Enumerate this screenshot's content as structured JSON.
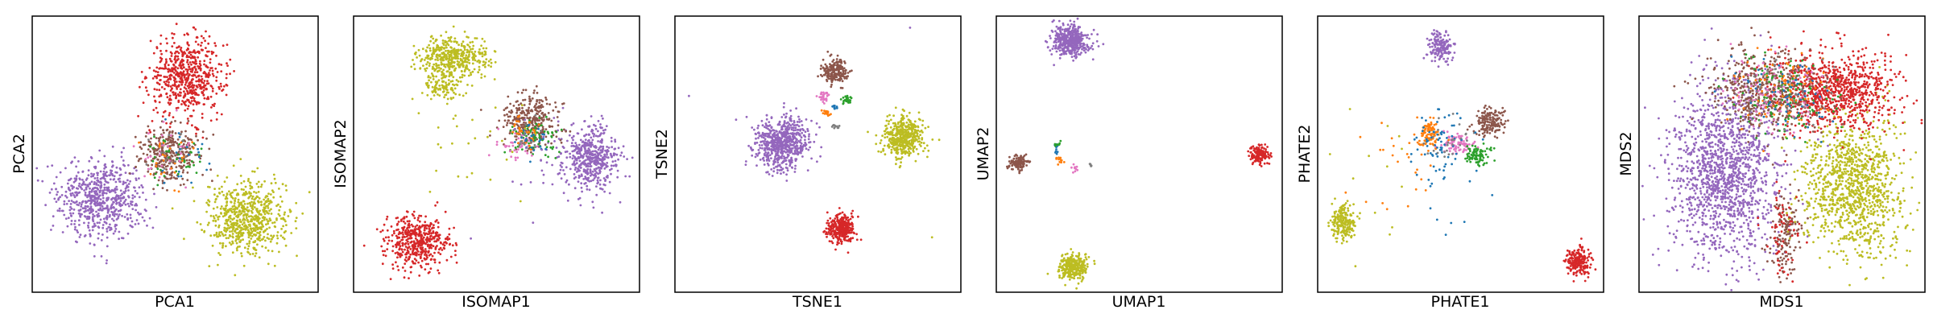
{
  "chart_data": [
    {
      "type": "scatter",
      "xlabel": "PCA1",
      "ylabel": "PCA2",
      "xlim": [
        0,
        100
      ],
      "ylim": [
        0,
        100
      ],
      "clusters": [
        {
          "color": "#d62728",
          "cx": 54,
          "cy": 78,
          "sx": 6.5,
          "sy": 7,
          "n": 600
        },
        {
          "color": "#9467bd",
          "cx": 24,
          "cy": 34,
          "sx": 7.5,
          "sy": 7,
          "n": 650
        },
        {
          "color": "#bcbd22",
          "cx": 75,
          "cy": 27,
          "sx": 7,
          "sy": 6.5,
          "n": 650
        },
        {
          "color": "#8c564b",
          "cx": 48,
          "cy": 50,
          "sx": 5,
          "sy": 5,
          "n": 320
        },
        {
          "color": "#2ca02c",
          "cx": 50,
          "cy": 48,
          "sx": 5,
          "sy": 5,
          "n": 40
        },
        {
          "color": "#e377c2",
          "cx": 46,
          "cy": 51,
          "sx": 5,
          "sy": 5,
          "n": 30
        },
        {
          "color": "#ff7f0e",
          "cx": 48,
          "cy": 49,
          "sx": 5,
          "sy": 5,
          "n": 25
        },
        {
          "color": "#1f77b4",
          "cx": 50,
          "cy": 47,
          "sx": 5,
          "sy": 5,
          "n": 20
        },
        {
          "color": "#7f7f7f",
          "cx": 47,
          "cy": 50,
          "sx": 4,
          "sy": 4,
          "n": 15
        }
      ]
    },
    {
      "type": "scatter",
      "xlabel": "ISOMAP1",
      "ylabel": "ISOMAP2",
      "xlim": [
        0,
        100
      ],
      "ylim": [
        0,
        100
      ],
      "clusters": [
        {
          "color": "#bcbd22",
          "cx": 35,
          "cy": 85,
          "sx": 6,
          "sy": 3.5,
          "n": 420
        },
        {
          "color": "#bcbd22",
          "cx": 32,
          "cy": 75,
          "sx": 4,
          "sy": 2.5,
          "n": 120
        },
        {
          "color": "#d62728",
          "cx": 22,
          "cy": 18,
          "sx": 5.5,
          "sy": 4.5,
          "n": 480
        },
        {
          "color": "#9467bd",
          "cx": 83,
          "cy": 49,
          "sx": 5,
          "sy": 6,
          "n": 480
        },
        {
          "color": "#8c564b",
          "cx": 62,
          "cy": 62,
          "sx": 5,
          "sy": 5,
          "n": 320
        },
        {
          "color": "#2ca02c",
          "cx": 63,
          "cy": 56,
          "sx": 4.5,
          "sy": 3.5,
          "n": 70
        },
        {
          "color": "#e377c2",
          "cx": 56,
          "cy": 53,
          "sx": 3,
          "sy": 3,
          "n": 40
        },
        {
          "color": "#ff7f0e",
          "cx": 60,
          "cy": 58,
          "sx": 3,
          "sy": 3,
          "n": 30
        },
        {
          "color": "#1f77b4",
          "cx": 62,
          "cy": 55,
          "sx": 3,
          "sy": 3,
          "n": 25
        },
        {
          "color": "#7f7f7f",
          "cx": 60,
          "cy": 57,
          "sx": 3,
          "sy": 3,
          "n": 15
        },
        {
          "color": "#bcbd22",
          "cx": 40,
          "cy": 55,
          "sx": 12,
          "sy": 12,
          "n": 30
        },
        {
          "color": "#9467bd",
          "cx": 70,
          "cy": 45,
          "sx": 10,
          "sy": 12,
          "n": 40
        }
      ]
    },
    {
      "type": "scatter",
      "xlabel": "TSNE1",
      "ylabel": "TSNE2",
      "xlim": [
        0,
        100
      ],
      "ylim": [
        0,
        100
      ],
      "clusters": [
        {
          "color": "#9467bd",
          "cx": 37,
          "cy": 54,
          "sx": 4.8,
          "sy": 4.8,
          "n": 650
        },
        {
          "color": "#bcbd22",
          "cx": 80,
          "cy": 56,
          "sx": 3.7,
          "sy": 3.7,
          "n": 450
        },
        {
          "color": "#d62728",
          "cx": 58,
          "cy": 23,
          "sx": 2.6,
          "sy": 2.6,
          "n": 300
        },
        {
          "color": "#8c564b",
          "cx": 56,
          "cy": 80,
          "sx": 2.2,
          "sy": 2.2,
          "n": 200
        },
        {
          "color": "#2ca02c",
          "cx": 60,
          "cy": 70,
          "sx": 0.8,
          "sy": 0.8,
          "n": 30
        },
        {
          "color": "#e377c2",
          "cx": 52,
          "cy": 71,
          "sx": 0.9,
          "sy": 0.9,
          "n": 30
        },
        {
          "color": "#ff7f0e",
          "cx": 53,
          "cy": 65,
          "sx": 0.6,
          "sy": 0.6,
          "n": 18
        },
        {
          "color": "#1f77b4",
          "cx": 56,
          "cy": 67,
          "sx": 0.5,
          "sy": 0.5,
          "n": 10
        },
        {
          "color": "#7f7f7f",
          "cx": 56,
          "cy": 60,
          "sx": 0.6,
          "sy": 0.6,
          "n": 10
        },
        {
          "color": "#9467bd",
          "cx": 82,
          "cy": 96,
          "sx": 0.2,
          "sy": 0.2,
          "n": 1
        },
        {
          "color": "#9467bd",
          "cx": 5,
          "cy": 71,
          "sx": 0.2,
          "sy": 0.2,
          "n": 1
        },
        {
          "color": "#bcbd22",
          "cx": 90,
          "cy": 20,
          "sx": 0.2,
          "sy": 0.2,
          "n": 1
        }
      ]
    },
    {
      "type": "scatter",
      "xlabel": "UMAP1",
      "ylabel": "UMAP2",
      "xlim": [
        0,
        100
      ],
      "ylim": [
        0,
        100
      ],
      "clusters": [
        {
          "color": "#9467bd",
          "cx": 26,
          "cy": 91,
          "sx": 3.2,
          "sy": 2.8,
          "n": 450
        },
        {
          "color": "#bcbd22",
          "cx": 27,
          "cy": 9,
          "sx": 2.4,
          "sy": 2.4,
          "n": 300
        },
        {
          "color": "#d62728",
          "cx": 92,
          "cy": 50,
          "sx": 1.8,
          "sy": 1.8,
          "n": 150
        },
        {
          "color": "#8c564b",
          "cx": 8,
          "cy": 47,
          "sx": 1.8,
          "sy": 1.2,
          "n": 120
        },
        {
          "color": "#1f77b4",
          "cx": 21,
          "cy": 52,
          "sx": 0.6,
          "sy": 1.5,
          "n": 12
        },
        {
          "color": "#ff7f0e",
          "cx": 22,
          "cy": 48,
          "sx": 0.8,
          "sy": 0.8,
          "n": 12
        },
        {
          "color": "#2ca02c",
          "cx": 21,
          "cy": 53,
          "sx": 0.6,
          "sy": 0.8,
          "n": 8
        },
        {
          "color": "#e377c2",
          "cx": 27,
          "cy": 45,
          "sx": 1,
          "sy": 0.8,
          "n": 10
        },
        {
          "color": "#7f7f7f",
          "cx": 33,
          "cy": 46,
          "sx": 0.4,
          "sy": 0.4,
          "n": 6
        }
      ]
    },
    {
      "type": "scatter",
      "xlabel": "PHATE1",
      "ylabel": "PHATE2",
      "xlim": [
        0,
        100
      ],
      "ylim": [
        0,
        100
      ],
      "clusters": [
        {
          "color": "#9467bd",
          "cx": 43,
          "cy": 89,
          "sx": 2.2,
          "sy": 2.8,
          "n": 160
        },
        {
          "color": "#bcbd22",
          "cx": 9,
          "cy": 25,
          "sx": 2.2,
          "sy": 3.5,
          "n": 200
        },
        {
          "color": "#d62728",
          "cx": 91,
          "cy": 11,
          "sx": 2.5,
          "sy": 2.5,
          "n": 200
        },
        {
          "color": "#8c564b",
          "cx": 60,
          "cy": 62,
          "sx": 2.8,
          "sy": 2.5,
          "n": 160
        },
        {
          "color": "#ff7f0e",
          "cx": 39,
          "cy": 57,
          "sx": 2,
          "sy": 2.5,
          "n": 90
        },
        {
          "color": "#e377c2",
          "cx": 49,
          "cy": 54,
          "sx": 2.5,
          "sy": 2,
          "n": 90
        },
        {
          "color": "#2ca02c",
          "cx": 56,
          "cy": 50,
          "sx": 2,
          "sy": 2,
          "n": 90
        },
        {
          "color": "#1f77b4",
          "cx": 42,
          "cy": 54,
          "sx": 4,
          "sy": 6,
          "n": 60
        },
        {
          "color": "#7f7f7f",
          "cx": 46,
          "cy": 55,
          "sx": 5,
          "sy": 5,
          "n": 25
        },
        {
          "color": "#ff7f0e",
          "cx": 30,
          "cy": 45,
          "sx": 9,
          "sy": 10,
          "n": 25
        },
        {
          "color": "#1f77b4",
          "cx": 45,
          "cy": 42,
          "sx": 8,
          "sy": 10,
          "n": 20
        },
        {
          "color": "#bcbd22",
          "cx": 20,
          "cy": 40,
          "sx": 8,
          "sy": 12,
          "n": 15
        }
      ]
    },
    {
      "type": "scatter",
      "xlabel": "MDS1",
      "ylabel": "MDS2",
      "xlim": [
        0,
        100
      ],
      "ylim": [
        0,
        100
      ],
      "clusters": [
        {
          "color": "#9467bd",
          "cx": 30,
          "cy": 44,
          "sx": 9.5,
          "sy": 16,
          "n": 1400
        },
        {
          "color": "#bcbd22",
          "cx": 75,
          "cy": 38,
          "sx": 8.5,
          "sy": 12,
          "n": 1100
        },
        {
          "color": "#d62728",
          "cx": 68,
          "cy": 73,
          "sx": 11,
          "sy": 7,
          "n": 900
        },
        {
          "color": "#8c564b",
          "cx": 44,
          "cy": 73,
          "sx": 9,
          "sy": 7,
          "n": 500
        },
        {
          "color": "#2ca02c",
          "cx": 50,
          "cy": 70,
          "sx": 9,
          "sy": 7,
          "n": 120
        },
        {
          "color": "#e377c2",
          "cx": 47,
          "cy": 72,
          "sx": 9,
          "sy": 7,
          "n": 100
        },
        {
          "color": "#ff7f0e",
          "cx": 50,
          "cy": 74,
          "sx": 9,
          "sy": 7,
          "n": 80
        },
        {
          "color": "#1f77b4",
          "cx": 52,
          "cy": 71,
          "sx": 9,
          "sy": 7,
          "n": 60
        },
        {
          "color": "#7f7f7f",
          "cx": 48,
          "cy": 73,
          "sx": 9,
          "sy": 7,
          "n": 40
        },
        {
          "color": "#8c564b",
          "cx": 51,
          "cy": 20,
          "sx": 3,
          "sy": 8,
          "n": 150
        },
        {
          "color": "#d62728",
          "cx": 50,
          "cy": 22,
          "sx": 3,
          "sy": 8,
          "n": 60
        }
      ]
    }
  ]
}
